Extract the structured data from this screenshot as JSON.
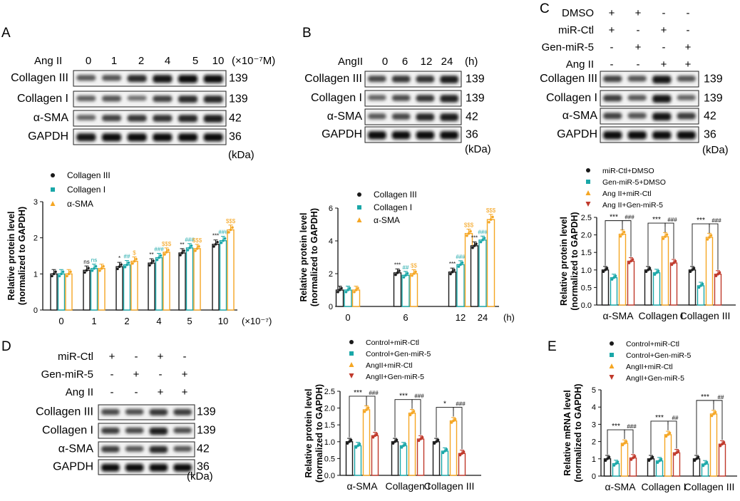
{
  "colors": {
    "black": "#1a1a1a",
    "teal": "#1aa7a8",
    "orange": "#f5a623",
    "red": "#c0392b"
  },
  "common": {
    "kda": "(kDa)",
    "plus": "+",
    "minus": "-",
    "ns": "ns",
    "star1": "*",
    "star2": "**",
    "star3": "***",
    "hash2": "##",
    "hash3": "###",
    "dollar1": "$",
    "dollar2": "$$",
    "dollar3": "$$$"
  },
  "panelA": {
    "letter": "A",
    "ang_label": "Ang II",
    "doses": [
      "0",
      "1",
      "2",
      "4",
      "5",
      "10"
    ],
    "unit": "(×10⁻⁷M)",
    "blots": [
      {
        "label": "Collagen III",
        "kda": "139"
      },
      {
        "label": "Collagen I",
        "kda": "139"
      },
      {
        "label": "α-SMA",
        "kda": "42"
      },
      {
        "label": "GAPDH",
        "kda": "36"
      }
    ],
    "chart_data": {
      "type": "bar",
      "ylabel": "Relative protein level",
      "ylabel2": "(normalized to GAPDH)",
      "categories": [
        "0",
        "1",
        "2",
        "4",
        "5",
        "10"
      ],
      "x_unit": "(×10⁻⁷)",
      "ylim": [
        0,
        3
      ],
      "yticks": [
        "0",
        "1",
        "2",
        "3"
      ],
      "series": [
        {
          "name": "Collagen III",
          "values": [
            1.0,
            1.1,
            1.2,
            1.3,
            1.58,
            1.82
          ]
        },
        {
          "name": "Collagen I",
          "values": [
            1.0,
            1.15,
            1.25,
            1.45,
            1.72,
            1.92
          ]
        },
        {
          "name": "α-SMA",
          "values": [
            1.0,
            1.15,
            1.35,
            1.6,
            1.7,
            2.22
          ]
        }
      ],
      "annotations": [
        [
          "",
          "",
          ""
        ],
        [
          "ns",
          "ns",
          ""
        ],
        [
          "*",
          "##",
          "$"
        ],
        [
          "**",
          "###",
          "$$$"
        ],
        [
          "**",
          "###",
          "$$$"
        ],
        [
          "***",
          "###",
          "$$$"
        ]
      ]
    }
  },
  "panelB": {
    "letter": "B",
    "ang_label": "AngII",
    "times": [
      "0",
      "6",
      "12",
      "24"
    ],
    "unit": "(h)",
    "blots": [
      {
        "label": "Collagen III",
        "kda": "139"
      },
      {
        "label": "Collagen I",
        "kda": "139"
      },
      {
        "label": "α-SMA",
        "kda": "42"
      },
      {
        "label": "GAPDH",
        "kda": "36"
      }
    ],
    "chart_data": {
      "type": "bar",
      "ylabel": "Relative protein level",
      "ylabel2": "(normalized to GAPDH)",
      "categories": [
        "0",
        "6",
        "12",
        "24"
      ],
      "x_unit": "(h)",
      "ylim": [
        0,
        6
      ],
      "yticks": [
        "0",
        "2",
        "4",
        "6"
      ],
      "series": [
        {
          "name": "Collagen III",
          "values": [
            1.0,
            2.05,
            2.1,
            3.7
          ]
        },
        {
          "name": "Collagen I",
          "values": [
            1.0,
            1.9,
            2.55,
            4.05
          ]
        },
        {
          "name": "α-SMA",
          "values": [
            1.0,
            2.0,
            4.45,
            5.3
          ]
        }
      ],
      "annotations": [
        [
          "",
          "",
          ""
        ],
        [
          "***",
          "##",
          "$$"
        ],
        [
          "***",
          "###",
          "$$$"
        ],
        [
          "***",
          "###",
          "$$$"
        ]
      ]
    }
  },
  "panelC": {
    "letter": "C",
    "conditions": [
      {
        "name": "DMSO",
        "signs": [
          "+",
          "+",
          "-",
          "-"
        ]
      },
      {
        "name": "miR-Ctl",
        "signs": [
          "+",
          "-",
          "+",
          "-"
        ]
      },
      {
        "name": "Gen-miR-5",
        "signs": [
          "-",
          "+",
          "-",
          "+"
        ]
      },
      {
        "name": "Ang II",
        "signs": [
          "-",
          "-",
          "+",
          "+"
        ]
      }
    ],
    "blots": [
      {
        "label": "Collagen III",
        "kda": "139"
      },
      {
        "label": "Collagen I",
        "kda": "139"
      },
      {
        "label": "α-SMA",
        "kda": "42"
      },
      {
        "label": "GAPDH",
        "kda": "36"
      }
    ],
    "chart_data": {
      "type": "bar",
      "ylabel": "Relative  protein level",
      "ylabel2": "(normalized to GAPDH)",
      "categories": [
        "α-SMA",
        "Collagen I",
        "Collagen III"
      ],
      "ylim": [
        0,
        2.5
      ],
      "yticks": [
        "0.0",
        "0.5",
        "1.0",
        "1.5",
        "2.0",
        "2.5"
      ],
      "series": [
        {
          "name": "miR-Ctl+DMSO",
          "values": [
            1.0,
            1.0,
            1.0
          ]
        },
        {
          "name": "Gen-miR-5+DMSO",
          "values": [
            0.78,
            0.92,
            0.55
          ]
        },
        {
          "name": "Ang II+miR-Ctl",
          "values": [
            2.02,
            1.95,
            1.93
          ]
        },
        {
          "name": "Ang II+Gen-miR-5",
          "values": [
            1.25,
            1.2,
            0.88
          ]
        }
      ],
      "sig": [
        "***",
        "###"
      ]
    }
  },
  "panelD": {
    "letter": "D",
    "conditions": [
      {
        "name": "miR-Ctl",
        "signs": [
          "+",
          "-",
          "+",
          "-"
        ]
      },
      {
        "name": "Gen-miR-5",
        "signs": [
          "-",
          "+",
          "-",
          "+"
        ]
      },
      {
        "name": "Ang II",
        "signs": [
          "-",
          "-",
          "+",
          "+"
        ]
      }
    ],
    "blots": [
      {
        "label": "Collagen III",
        "kda": "139"
      },
      {
        "label": "Collagen I",
        "kda": "139"
      },
      {
        "label": "α-SMA",
        "kda": "42"
      },
      {
        "label": "GAPDH",
        "kda": "36"
      }
    ],
    "chart_data": {
      "type": "bar",
      "ylabel": "Relative  protein level",
      "ylabel2": "(normalized to GAPDH)",
      "categories": [
        "α-SMA",
        "Collagen I",
        "Collagen III"
      ],
      "ylim": [
        0,
        2.5
      ],
      "yticks": [
        "0.0",
        "0.5",
        "1.0",
        "1.5",
        "2.0",
        "2.5"
      ],
      "series": [
        {
          "name": "Control+miR-Ctl",
          "values": [
            1.0,
            1.0,
            1.0
          ]
        },
        {
          "name": "Control+Gen-miR-5",
          "values": [
            0.88,
            0.88,
            0.72
          ]
        },
        {
          "name": "AngII+miR-Ctl",
          "values": [
            1.95,
            1.85,
            1.62
          ]
        },
        {
          "name": "AngII+Gen-miR-5",
          "values": [
            1.18,
            1.08,
            0.65
          ]
        }
      ],
      "sig": [
        [
          "***",
          "###"
        ],
        [
          "***",
          "###"
        ],
        [
          "*",
          "###"
        ]
      ]
    }
  },
  "panelE": {
    "letter": "E",
    "chart_data": {
      "type": "bar",
      "ylabel": "Relative  mRNA level",
      "ylabel2": "(normalized to GAPDH)",
      "categories": [
        "α-SMA",
        "Collagen I",
        "Collagen III"
      ],
      "ylim": [
        0,
        5
      ],
      "yticks": [
        "0",
        "1",
        "2",
        "3",
        "4",
        "5"
      ],
      "series": [
        {
          "name": "Control+miR-Ctl",
          "values": [
            1.0,
            1.0,
            1.0
          ]
        },
        {
          "name": "Control+Gen-miR-5",
          "values": [
            0.72,
            0.88,
            0.7
          ]
        },
        {
          "name": "AngII+miR-Ctl",
          "values": [
            1.9,
            2.4,
            3.6
          ]
        },
        {
          "name": "AngII+Gen-miR-5",
          "values": [
            1.05,
            1.35,
            1.85
          ]
        }
      ],
      "sig": [
        [
          "***",
          "###"
        ],
        [
          "***",
          "##"
        ],
        [
          "***",
          "##"
        ]
      ]
    }
  }
}
